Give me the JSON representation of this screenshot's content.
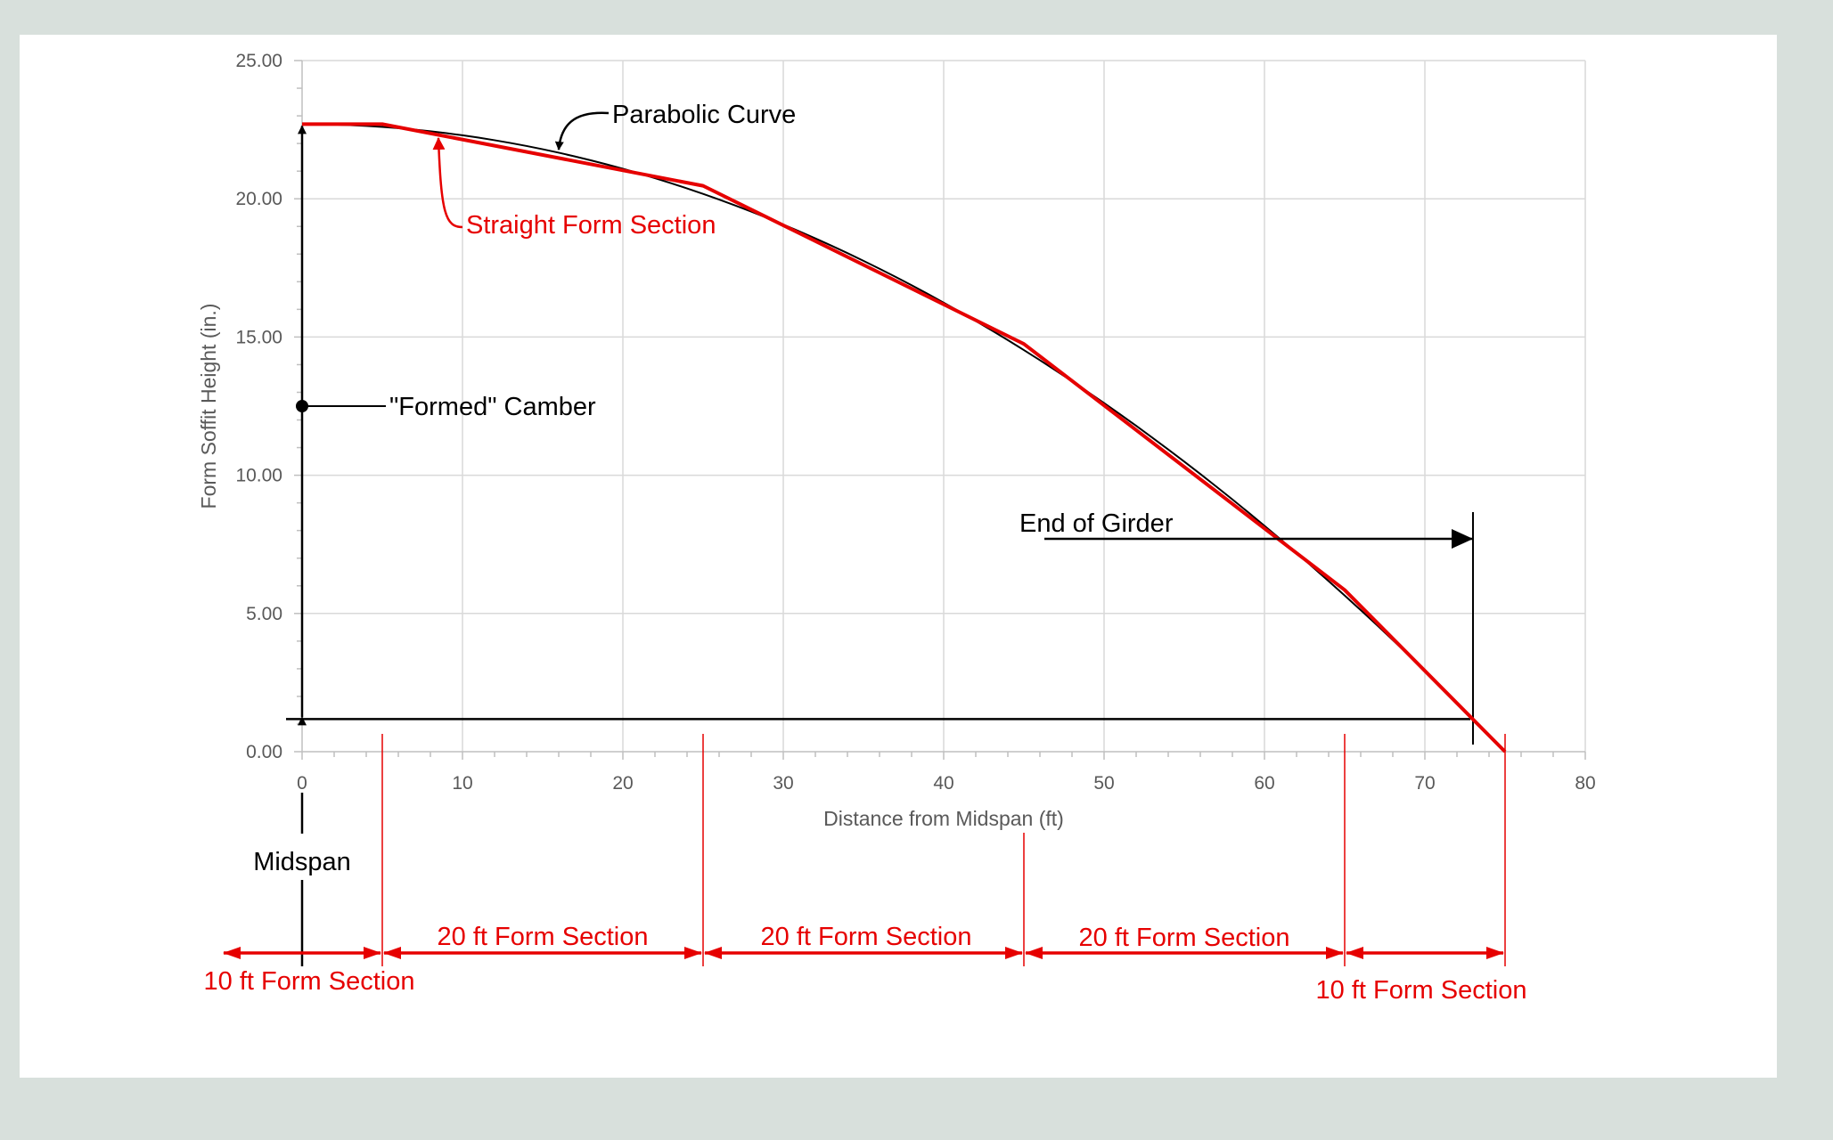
{
  "colors": {
    "background": "#d8e0dc",
    "panel": "#ffffff",
    "grid": "#d9d9d9",
    "axis": "#bfbfbf",
    "tick_text": "#595959",
    "parabola": "#000000",
    "form": "#e60000",
    "annotation": "#000000",
    "dimension": "#e60000"
  },
  "chart_data": {
    "type": "line",
    "title": "",
    "xlabel": "Distance from Midspan (ft)",
    "ylabel": "Form Soffit Height (in.)",
    "xlim": [
      0,
      80
    ],
    "ylim": [
      0,
      25
    ],
    "x_ticks": [
      0,
      10,
      20,
      30,
      40,
      50,
      60,
      70,
      80
    ],
    "x_tick_labels": [
      "0",
      "10",
      "20",
      "30",
      "40",
      "50",
      "60",
      "70",
      "80"
    ],
    "y_ticks": [
      0,
      5,
      10,
      15,
      20,
      25
    ],
    "y_tick_labels": [
      "0.00",
      "5.00",
      "10.00",
      "15.00",
      "20.00",
      "25.00"
    ],
    "grid": true,
    "legend": "none",
    "series": [
      {
        "name": "Parabolic Curve",
        "color": "#000000",
        "x": [
          0,
          5,
          10,
          15,
          20,
          25,
          30,
          35,
          40,
          45,
          50,
          55,
          60,
          65,
          70,
          75
        ],
        "values": [
          22.7,
          22.6,
          22.3,
          21.79,
          21.09,
          20.18,
          19.07,
          17.76,
          16.24,
          14.53,
          12.61,
          10.5,
          8.17,
          5.65,
          2.93,
          0.0
        ]
      },
      {
        "name": "Straight Form Section",
        "color": "#e60000",
        "x": [
          0,
          5,
          25,
          45,
          65,
          75
        ],
        "values": [
          22.7,
          22.7,
          20.47,
          14.75,
          5.85,
          0.0
        ]
      }
    ],
    "reference_lines": {
      "end_of_girder_x": 73,
      "end_of_girder_height": 1.18,
      "formed_camber_marker_y": 12.5
    },
    "annotations": [
      {
        "text": "Parabolic Curve",
        "color": "black"
      },
      {
        "text": "Straight Form Section",
        "color": "red"
      },
      {
        "text": "\"Formed\" Camber",
        "color": "black"
      },
      {
        "text": "End of Girder",
        "color": "black"
      },
      {
        "text": "Midspan",
        "color": "black"
      }
    ],
    "form_sections": [
      {
        "label": "10 ft Form Section",
        "from": -5,
        "to": 5
      },
      {
        "label": "20 ft Form Section",
        "from": 5,
        "to": 25
      },
      {
        "label": "20 ft Form Section",
        "from": 25,
        "to": 45
      },
      {
        "label": "20 ft Form Section",
        "from": 45,
        "to": 65
      },
      {
        "label": "10 ft Form Section",
        "from": 65,
        "to": 75
      }
    ]
  },
  "labels": {
    "parabolic_curve": "Parabolic Curve",
    "straight_form_section": "Straight Form Section",
    "formed_camber": "\"Formed\" Camber",
    "end_of_girder": "End of Girder",
    "midspan": "Midspan",
    "section_10ft_left": "10 ft Form Section",
    "section_20ft_1": "20 ft Form Section",
    "section_20ft_2": "20 ft Form Section",
    "section_20ft_3": "20 ft Form Section",
    "section_10ft_right": "10 ft Form Section",
    "xlabel": "Distance from Midspan (ft)",
    "ylabel": "Form Soffit Height (in.)"
  }
}
